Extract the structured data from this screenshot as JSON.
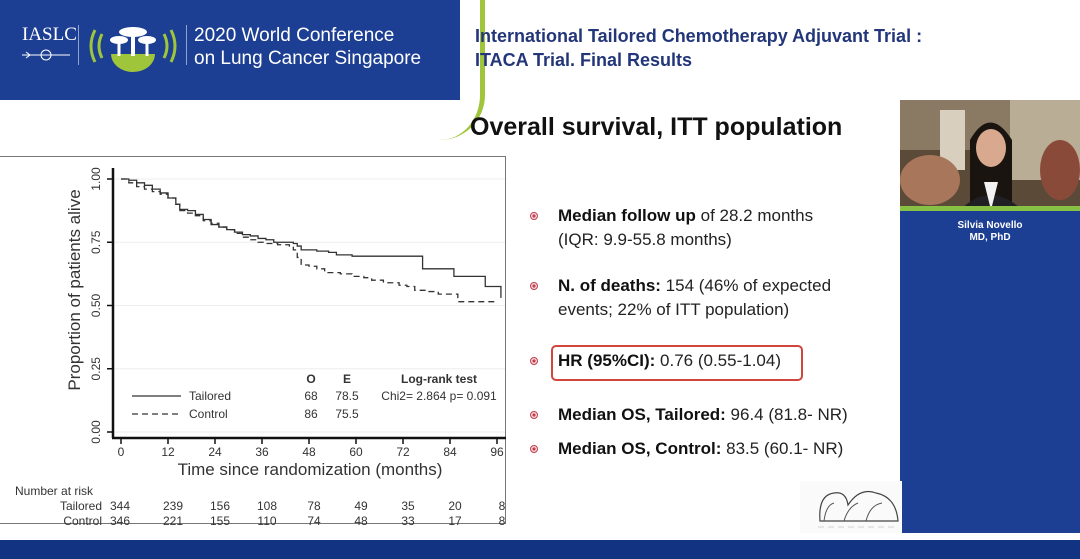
{
  "header": {
    "org_logo_text": "IASLC",
    "conference_title_line1": "2020 World Conference",
    "conference_title_line2": "on Lung Cancer Singapore",
    "trial_title_line1": "International Tailored Chemotherapy Adjuvant Trial :",
    "trial_title_line2": "ITACA Trial. Final Results"
  },
  "slide_title": "Overall survival, ITT population",
  "colors": {
    "brand_blue": "#1d3f93",
    "accent_green": "#9fc63b",
    "title_navy": "#23367a",
    "highlight_red": "#d0453e",
    "bullet_red": "#c04050"
  },
  "bullets": [
    {
      "bold": "Median follow up",
      "text": " of 28.2 months",
      "line2": "(IQR: 9.9-55.8 months)"
    },
    {
      "bold": "N. of  deaths:",
      "text": " 154 (46% of expected",
      "line2": "events; 22% of ITT population)"
    },
    {
      "bold": "HR (95%CI):",
      "text": " 0.76 (0.55-1.04)",
      "line2": "",
      "highlighted": true
    },
    {
      "bold": "Median OS, Tailored:",
      "text": " 96.4 (81.8- NR)",
      "line2": ""
    },
    {
      "bold": "Median OS, Control:",
      "text": " 83.5 (60.1- NR)",
      "line2": ""
    }
  ],
  "speaker": {
    "name": "Silvia Novello",
    "credentials": "MD, PhD"
  },
  "chart_data": {
    "type": "line",
    "subtype": "kaplan-meier",
    "title": "",
    "xlabel": "Time since randomization (months)",
    "ylabel": "Proportion of patients alive",
    "xlim": [
      0,
      96
    ],
    "ylim": [
      0,
      1
    ],
    "x_ticks": [
      0,
      12,
      24,
      36,
      48,
      60,
      72,
      84,
      96
    ],
    "y_ticks": [
      "0.00",
      "0.25",
      "0.50",
      "0.75",
      "1.00"
    ],
    "grid": "horizontal-faint",
    "legend": "bottom-left",
    "series": [
      {
        "name": "Tailored",
        "style": "solid",
        "points": [
          [
            0,
            1.0
          ],
          [
            2,
            0.995
          ],
          [
            4,
            0.985
          ],
          [
            6,
            0.975
          ],
          [
            8,
            0.96
          ],
          [
            10,
            0.945
          ],
          [
            12,
            0.925
          ],
          [
            14,
            0.9
          ],
          [
            15,
            0.88
          ],
          [
            17,
            0.875
          ],
          [
            19,
            0.86
          ],
          [
            21,
            0.84
          ],
          [
            23,
            0.82
          ],
          [
            25,
            0.81
          ],
          [
            27,
            0.8
          ],
          [
            29,
            0.79
          ],
          [
            31,
            0.78
          ],
          [
            33,
            0.775
          ],
          [
            35,
            0.765
          ],
          [
            37,
            0.76
          ],
          [
            39,
            0.75
          ],
          [
            42,
            0.75
          ],
          [
            44,
            0.745
          ],
          [
            45,
            0.735
          ],
          [
            46,
            0.72
          ],
          [
            50,
            0.715
          ],
          [
            53,
            0.71
          ],
          [
            55,
            0.7
          ],
          [
            59,
            0.695
          ],
          [
            77,
            0.695
          ],
          [
            77,
            0.645
          ],
          [
            85,
            0.645
          ],
          [
            85,
            0.615
          ],
          [
            93,
            0.615
          ],
          [
            93,
            0.575
          ],
          [
            97,
            0.575
          ],
          [
            97,
            0.53
          ]
        ]
      },
      {
        "name": "Control",
        "style": "dashed",
        "points": [
          [
            0,
            1.0
          ],
          [
            2,
            0.985
          ],
          [
            4,
            0.97
          ],
          [
            6,
            0.96
          ],
          [
            8,
            0.95
          ],
          [
            10,
            0.94
          ],
          [
            12,
            0.925
          ],
          [
            14,
            0.9
          ],
          [
            15,
            0.875
          ],
          [
            17,
            0.865
          ],
          [
            19,
            0.855
          ],
          [
            21,
            0.835
          ],
          [
            23,
            0.825
          ],
          [
            25,
            0.81
          ],
          [
            27,
            0.8
          ],
          [
            29,
            0.785
          ],
          [
            31,
            0.77
          ],
          [
            33,
            0.76
          ],
          [
            35,
            0.75
          ],
          [
            37,
            0.745
          ],
          [
            40,
            0.74
          ],
          [
            43,
            0.735
          ],
          [
            44,
            0.72
          ],
          [
            45,
            0.69
          ],
          [
            46,
            0.66
          ],
          [
            48,
            0.655
          ],
          [
            50,
            0.645
          ],
          [
            52,
            0.63
          ],
          [
            56,
            0.625
          ],
          [
            59,
            0.615
          ],
          [
            62,
            0.61
          ],
          [
            64,
            0.6
          ],
          [
            67,
            0.59
          ],
          [
            71,
            0.58
          ],
          [
            73,
            0.575
          ],
          [
            75,
            0.56
          ],
          [
            78,
            0.555
          ],
          [
            81,
            0.545
          ],
          [
            86,
            0.545
          ],
          [
            86,
            0.515
          ],
          [
            96,
            0.515
          ]
        ]
      }
    ],
    "legend_table": {
      "headers": [
        "O",
        "E",
        "Log-rank test"
      ],
      "rows": [
        {
          "name": "Tailored",
          "O": "68",
          "E": "78.5",
          "test": "Chi2= 2.864 p= 0.091"
        },
        {
          "name": "Control",
          "O": "86",
          "E": "75.5",
          "test": ""
        }
      ]
    },
    "number_at_risk": {
      "label": "Number at risk",
      "rows": [
        {
          "name": "Tailored",
          "values": [
            "344",
            "239",
            "156",
            "108",
            "78",
            "49",
            "35",
            "20",
            "8"
          ]
        },
        {
          "name": "Control",
          "values": [
            "346",
            "221",
            "155",
            "110",
            "74",
            "48",
            "33",
            "17",
            "8"
          ]
        }
      ]
    }
  }
}
